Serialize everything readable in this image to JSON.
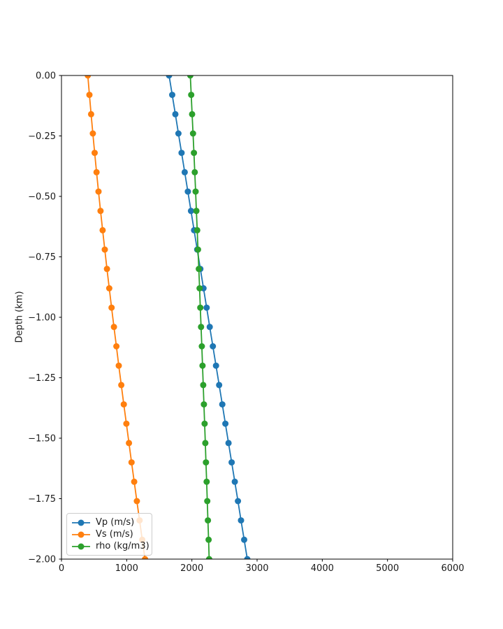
{
  "window": {
    "background": "#ffffff"
  },
  "chart_data": {
    "type": "line",
    "title": "",
    "xlabel": "",
    "ylabel": "Depth (km)",
    "xlim": [
      0,
      6000
    ],
    "ylim": [
      -2.0,
      0.0
    ],
    "grid": false,
    "legend_position": "lower left",
    "axis_color": "#000000",
    "tick_label_color": "#1a1a1a",
    "xticks": [
      0,
      1000,
      2000,
      3000,
      4000,
      5000,
      6000
    ],
    "xtick_labels": [
      "0",
      "1000",
      "2000",
      "3000",
      "4000",
      "5000",
      "6000"
    ],
    "yticks": [
      0.0,
      -0.25,
      -0.5,
      -0.75,
      -1.0,
      -1.25,
      -1.5,
      -1.75,
      -2.0
    ],
    "ytick_labels": [
      "0.00",
      "−0.25",
      "−0.50",
      "−0.75",
      "−1.00",
      "−1.25",
      "−1.50",
      "−1.75",
      "−2.00"
    ],
    "depth_km": [
      0.0,
      -0.08,
      -0.16,
      -0.24,
      -0.32,
      -0.4,
      -0.48,
      -0.56,
      -0.64,
      -0.72,
      -0.8,
      -0.88,
      -0.96,
      -1.04,
      -1.12,
      -1.2,
      -1.28,
      -1.36,
      -1.44,
      -1.52,
      -1.6,
      -1.68,
      -1.76,
      -1.84,
      -1.92,
      -2.0
    ],
    "series": [
      {
        "name": "Vp (m/s)",
        "color": "#1f77b4",
        "marker": "o",
        "values": [
          1650,
          1698,
          1746,
          1794,
          1842,
          1890,
          1938,
          1986,
          2034,
          2082,
          2130,
          2178,
          2226,
          2274,
          2322,
          2370,
          2418,
          2466,
          2514,
          2562,
          2610,
          2658,
          2706,
          2754,
          2802,
          2850
        ]
      },
      {
        "name": "Vs (m/s)",
        "color": "#ff7f0e",
        "marker": "o",
        "values": [
          404,
          429,
          454,
          481,
          509,
          538,
          568,
          599,
          631,
          664,
          698,
          733,
          768,
          805,
          842,
          879,
          917,
          956,
          995,
          1035,
          1075,
          1115,
          1156,
          1198,
          1239,
          1281
        ]
      },
      {
        "name": "rho (kg/m3)",
        "color": "#2ca02c",
        "marker": "o",
        "values": [
          1976,
          1990,
          2004,
          2018,
          2031,
          2044,
          2057,
          2069,
          2082,
          2094,
          2106,
          2118,
          2129,
          2141,
          2152,
          2163,
          2174,
          2185,
          2195,
          2206,
          2216,
          2226,
          2236,
          2246,
          2256,
          2265
        ]
      }
    ]
  }
}
